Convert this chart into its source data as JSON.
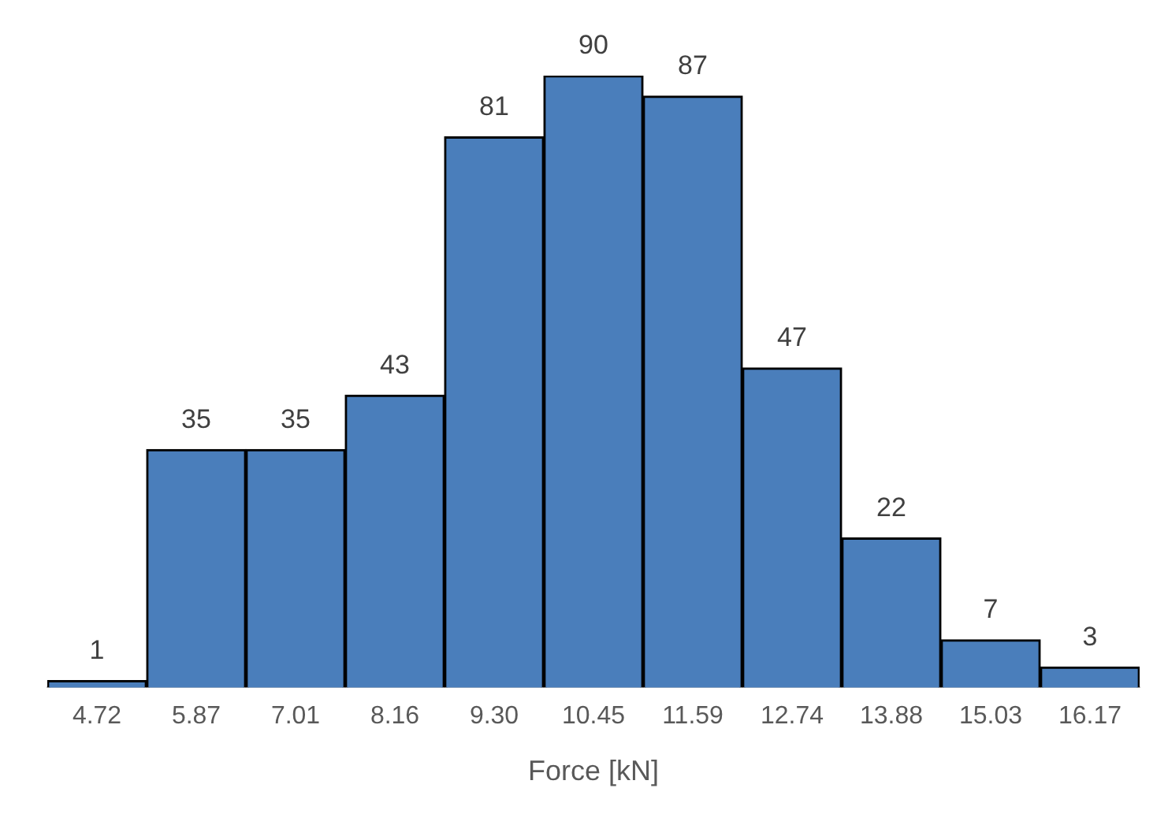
{
  "chart_data": {
    "type": "bar",
    "xlabel": "Force [kN]",
    "categories": [
      "4.72",
      "5.87",
      "7.01",
      "8.16",
      "9.30",
      "10.45",
      "11.59",
      "12.74",
      "13.88",
      "15.03",
      "16.17"
    ],
    "values": [
      1,
      35,
      35,
      43,
      81,
      90,
      87,
      47,
      22,
      7,
      3
    ],
    "color": "#4a7ebb",
    "data_labels": true,
    "grid": false,
    "legend": false
  }
}
